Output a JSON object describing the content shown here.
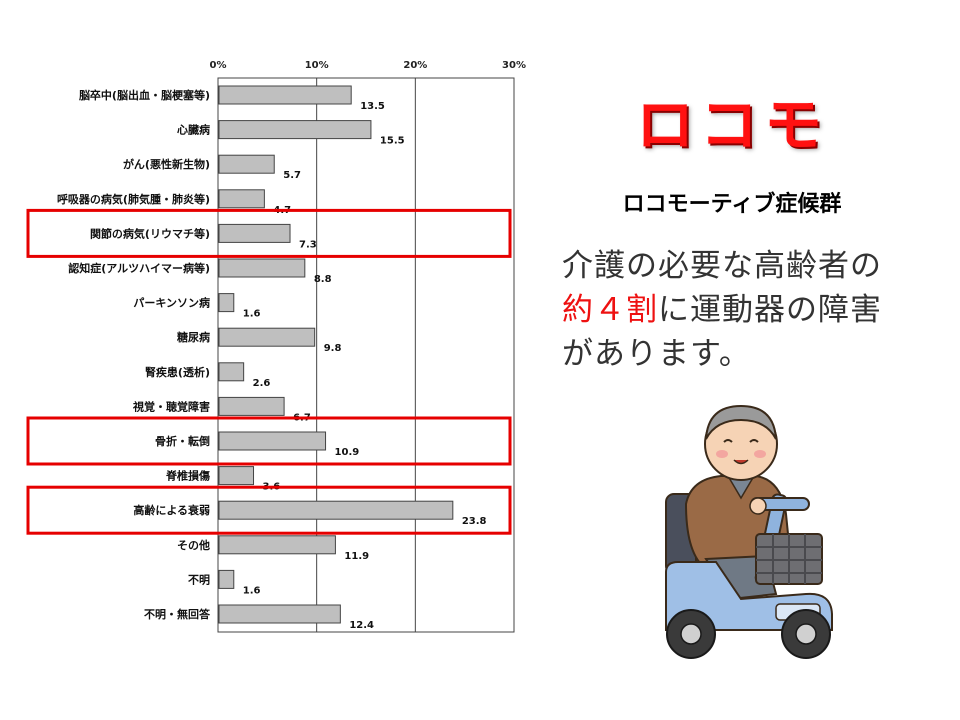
{
  "chart_data": {
    "type": "bar",
    "orientation": "horizontal",
    "categories": [
      "脳卒中(脳出血・脳梗塞等)",
      "心臓病",
      "がん(悪性新生物)",
      "呼吸器の病気(肺気腫・肺炎等)",
      "関節の病気(リウマチ等)",
      "認知症(アルツハイマー病等)",
      "パーキンソン病",
      "糖尿病",
      "腎疾患(透析)",
      "視覚・聴覚障害",
      "骨折・転倒",
      "脊椎損傷",
      "高齢による衰弱",
      "その他",
      "不明",
      "不明・無回答"
    ],
    "values": [
      13.5,
      15.5,
      5.7,
      4.7,
      7.3,
      8.8,
      1.6,
      9.8,
      2.6,
      6.7,
      10.9,
      3.6,
      23.8,
      11.9,
      1.6,
      12.4
    ],
    "value_labels": [
      "13.5",
      "15.5",
      "5.7",
      "4.7",
      "7.3",
      "8.8",
      "1.6",
      "9.8",
      "2.6",
      "6.7",
      "10.9",
      "3.6",
      "23.8",
      "11.9",
      "1.6",
      "12.4"
    ],
    "xticks": [
      "0%",
      "10%",
      "20%",
      "30%"
    ],
    "xlim": [
      0,
      30
    ],
    "grid": true,
    "highlighted": [
      "関節の病気(リウマチ等)",
      "骨折・転倒",
      "高齢による衰弱"
    ],
    "bar_color": "#bfbfbf",
    "highlight_color": "#e60000"
  },
  "slide": {
    "title": "ロコモ",
    "subtitle": "ロコモーティブ症候群",
    "text_before": "介護の必要な高齢者の",
    "text_highlight": "約４割",
    "text_after": "に運動器の障害があります。",
    "title_color": "#ff1111",
    "highlight_color": "#ee1111"
  },
  "illustration": {
    "icon": "elderly-man-on-mobility-scooter-icon"
  }
}
